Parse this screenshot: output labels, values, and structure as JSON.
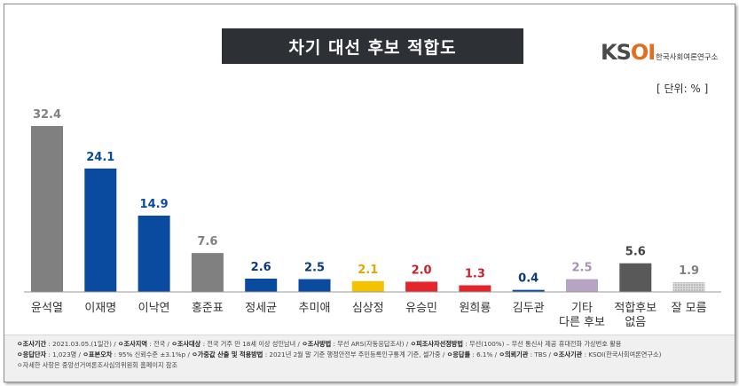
{
  "title": "차기 대선 후보 적합도",
  "logo": {
    "text_main": "KS",
    "text_accent": "OI",
    "subtitle": "한국사회여론연구소"
  },
  "unit_label": "[ 단위: % ]",
  "chart_data": {
    "type": "bar",
    "categories": [
      "윤석열",
      "이재명",
      "이낙연",
      "홍준표",
      "정세균",
      "추미애",
      "심상정",
      "유승민",
      "원희룡",
      "김두관",
      "기타 다른 후보",
      "적합후보 없음",
      "잘 모름"
    ],
    "category_lines": [
      [
        "윤석열"
      ],
      [
        "이재명"
      ],
      [
        "이낙연"
      ],
      [
        "홍준표"
      ],
      [
        "정세균"
      ],
      [
        "추미애"
      ],
      [
        "심상정"
      ],
      [
        "유승민"
      ],
      [
        "원희룡"
      ],
      [
        "김두관"
      ],
      [
        "기타",
        "다른 후보"
      ],
      [
        "적합후보",
        "없음"
      ],
      [
        "잘 모름"
      ]
    ],
    "values": [
      32.4,
      24.1,
      14.9,
      7.6,
      2.6,
      2.5,
      2.1,
      2.0,
      1.3,
      0.4,
      2.5,
      5.6,
      1.9
    ],
    "value_labels": [
      "32.4",
      "24.1",
      "14.9",
      "7.6",
      "2.6",
      "2.5",
      "2.1",
      "2.0",
      "1.3",
      "0.4",
      "2.5",
      "5.6",
      "1.9"
    ],
    "colors": [
      "#808080",
      "#0a4a9f",
      "#0a4a9f",
      "#808080",
      "#0a4a9f",
      "#0a4a9f",
      "#f5c200",
      "#e3252c",
      "#e3252c",
      "#0a4a9f",
      "#b7a4c4",
      "#595959",
      "#bfbfbf"
    ],
    "label_colors": [
      "#808080",
      "#0a4a9f",
      "#0a4a9f",
      "#808080",
      "#0a3a7a",
      "#0a3a7a",
      "#e0a800",
      "#c8202a",
      "#c8202a",
      "#0a3a7a",
      "#a890b8",
      "#404040",
      "#808080"
    ],
    "patterned": [
      false,
      false,
      false,
      false,
      false,
      false,
      false,
      false,
      false,
      false,
      false,
      false,
      true
    ],
    "ylim": [
      0,
      35
    ],
    "grid": false,
    "legend": "none"
  },
  "footer": {
    "line1": [
      {
        "label": "조사기간",
        "value": "2021.03.05.(1일간)"
      },
      {
        "label": "조사지역",
        "value": "전국"
      },
      {
        "label": "조사대상",
        "value": "전국 거주 만 18세 이상 성인남녀"
      },
      {
        "label": "조사방법",
        "value": "무선 ARS(자동응답조사)"
      },
      {
        "label": "피조사자선정방법",
        "value": "무선(100%) – 무선 통신사 제공 휴대전화 가상번호 활용"
      }
    ],
    "line2": [
      {
        "label": "응답단자",
        "value": "1,023명"
      },
      {
        "label": "표본오차",
        "value": "95% 신뢰수준 ±3.1%p"
      },
      {
        "label": "가중값 산출 및 적용방법",
        "value": "2021년 2월 말 기준 행정안전부 주민등록인구통계 기준, 셀가중"
      },
      {
        "label": "응답률",
        "value": "6.1%"
      },
      {
        "label": "의뢰기관",
        "value": "TBS"
      },
      {
        "label": "조사기관",
        "value": "KSOI(한국사회여론연구소)"
      }
    ],
    "line3": "자세한 사항은 중앙선거여론조사심의위원회 홈페이지 참조"
  }
}
